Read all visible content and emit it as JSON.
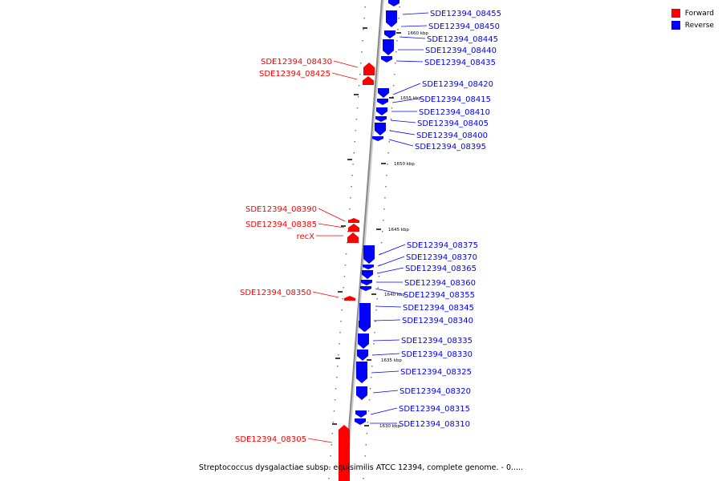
{
  "colors": {
    "forward": "#ff0000",
    "reverse": "#0000ff",
    "backbone": "#888888"
  },
  "legend": {
    "forward_label": "Forward",
    "reverse_label": "Reverse"
  },
  "caption": "Streptococcus dysgalactiae subsp. equisimilis ATCC 12394, complete genome. - 0.....",
  "scale_labels": [
    "1660 kbp",
    "1655 kbp",
    "1650 kbp",
    "1645 kbp",
    "1640 kbp",
    "1635 kbp",
    "1630 kbp"
  ],
  "genes": [
    {
      "label": "SDE12394_08455",
      "strand": "reverse"
    },
    {
      "label": "SDE12394_08450",
      "strand": "reverse"
    },
    {
      "label": "SDE12394_08445",
      "strand": "reverse"
    },
    {
      "label": "SDE12394_08440",
      "strand": "reverse"
    },
    {
      "label": "SDE12394_08435",
      "strand": "reverse"
    },
    {
      "label": "SDE12394_08430",
      "strand": "forward"
    },
    {
      "label": "SDE12394_08425",
      "strand": "forward"
    },
    {
      "label": "SDE12394_08420",
      "strand": "reverse"
    },
    {
      "label": "SDE12394_08415",
      "strand": "reverse"
    },
    {
      "label": "SDE12394_08410",
      "strand": "reverse"
    },
    {
      "label": "SDE12394_08405",
      "strand": "reverse"
    },
    {
      "label": "SDE12394_08400",
      "strand": "reverse"
    },
    {
      "label": "SDE12394_08395",
      "strand": "reverse"
    },
    {
      "label": "SDE12394_08390",
      "strand": "forward"
    },
    {
      "label": "SDE12394_08385",
      "strand": "forward"
    },
    {
      "label": "recX",
      "strand": "forward"
    },
    {
      "label": "SDE12394_08375",
      "strand": "reverse"
    },
    {
      "label": "SDE12394_08370",
      "strand": "reverse"
    },
    {
      "label": "SDE12394_08365",
      "strand": "reverse"
    },
    {
      "label": "SDE12394_08360",
      "strand": "reverse"
    },
    {
      "label": "SDE12394_08355",
      "strand": "reverse"
    },
    {
      "label": "SDE12394_08350",
      "strand": "forward"
    },
    {
      "label": "SDE12394_08345",
      "strand": "reverse"
    },
    {
      "label": "SDE12394_08340",
      "strand": "reverse"
    },
    {
      "label": "SDE12394_08335",
      "strand": "reverse"
    },
    {
      "label": "SDE12394_08330",
      "strand": "reverse"
    },
    {
      "label": "SDE12394_08325",
      "strand": "reverse"
    },
    {
      "label": "SDE12394_08320",
      "strand": "reverse"
    },
    {
      "label": "SDE12394_08315",
      "strand": "reverse"
    },
    {
      "label": "SDE12394_08310",
      "strand": "reverse"
    },
    {
      "label": "SDE12394_08305",
      "strand": "forward"
    }
  ]
}
